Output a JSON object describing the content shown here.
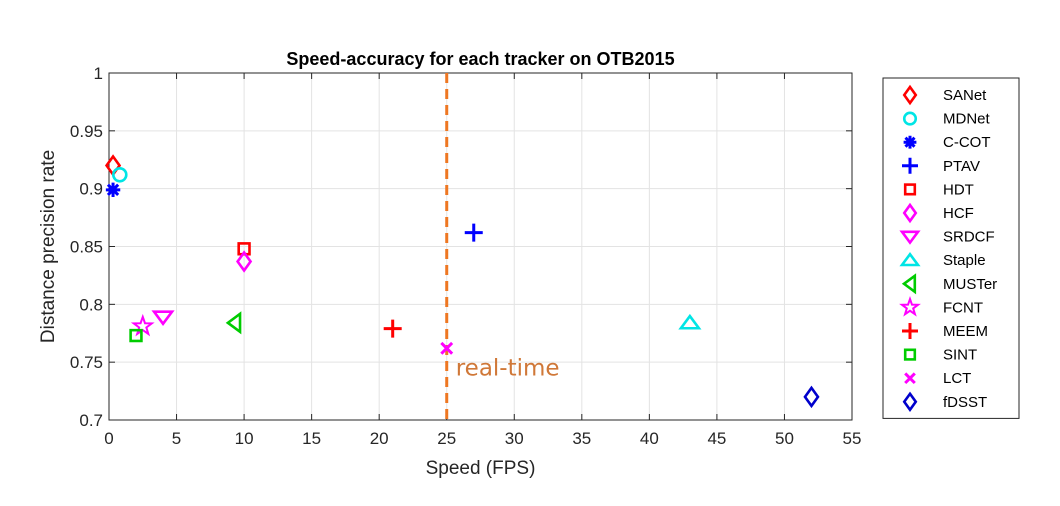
{
  "chart_data": {
    "type": "scatter",
    "title": "Speed-accuracy for each tracker on OTB2015",
    "xlabel": "Speed (FPS)",
    "ylabel": "Distance precision rate",
    "xlim": [
      0,
      55
    ],
    "ylim": [
      0.7,
      1
    ],
    "xticks": [
      "0",
      "5",
      "10",
      "15",
      "20",
      "25",
      "30",
      "35",
      "40",
      "45",
      "50",
      "55"
    ],
    "yticks": [
      "0.7",
      "0.75",
      "0.8",
      "0.85",
      "0.9",
      "0.95",
      "1"
    ],
    "grid": true,
    "legend_position": "outside-right",
    "series": [
      {
        "name": "SANet",
        "marker": "diamond",
        "color": "#ff0000",
        "x": 0.3,
        "y": 0.92
      },
      {
        "name": "MDNet",
        "marker": "circle",
        "color": "#00e5e5",
        "x": 0.8,
        "y": 0.912
      },
      {
        "name": "C-COT",
        "marker": "asterisk",
        "color": "#0000ff",
        "x": 0.3,
        "y": 0.899
      },
      {
        "name": "PTAV",
        "marker": "plus",
        "color": "#0000ff",
        "x": 27,
        "y": 0.862
      },
      {
        "name": "HDT",
        "marker": "square",
        "color": "#ff0000",
        "x": 10,
        "y": 0.848
      },
      {
        "name": "HCF",
        "marker": "diamond",
        "color": "#ff00ff",
        "x": 10,
        "y": 0.837
      },
      {
        "name": "SRDCF",
        "marker": "triangle-down",
        "color": "#ff00ff",
        "x": 4,
        "y": 0.789
      },
      {
        "name": "Staple",
        "marker": "triangle-up",
        "color": "#00e5e5",
        "x": 43,
        "y": 0.784
      },
      {
        "name": "MUSTer",
        "marker": "triangle-left",
        "color": "#00cc00",
        "x": 9.3,
        "y": 0.784
      },
      {
        "name": "FCNT",
        "marker": "star",
        "color": "#ff00ff",
        "x": 2.5,
        "y": 0.781
      },
      {
        "name": "MEEM",
        "marker": "plus",
        "color": "#ff0000",
        "x": 21,
        "y": 0.779
      },
      {
        "name": "SINT",
        "marker": "square",
        "color": "#00cc00",
        "x": 2,
        "y": 0.773
      },
      {
        "name": "LCT",
        "marker": "x",
        "color": "#ff00ff",
        "x": 25,
        "y": 0.762
      },
      {
        "name": "fDSST",
        "marker": "diamond",
        "color": "#0000cc",
        "x": 52,
        "y": 0.72
      }
    ],
    "reference_line": {
      "orientation": "vertical",
      "x": 25,
      "style": "dashed",
      "color": "#ee7722"
    },
    "annotation": {
      "text": "real-time",
      "color": "#d07838"
    }
  }
}
